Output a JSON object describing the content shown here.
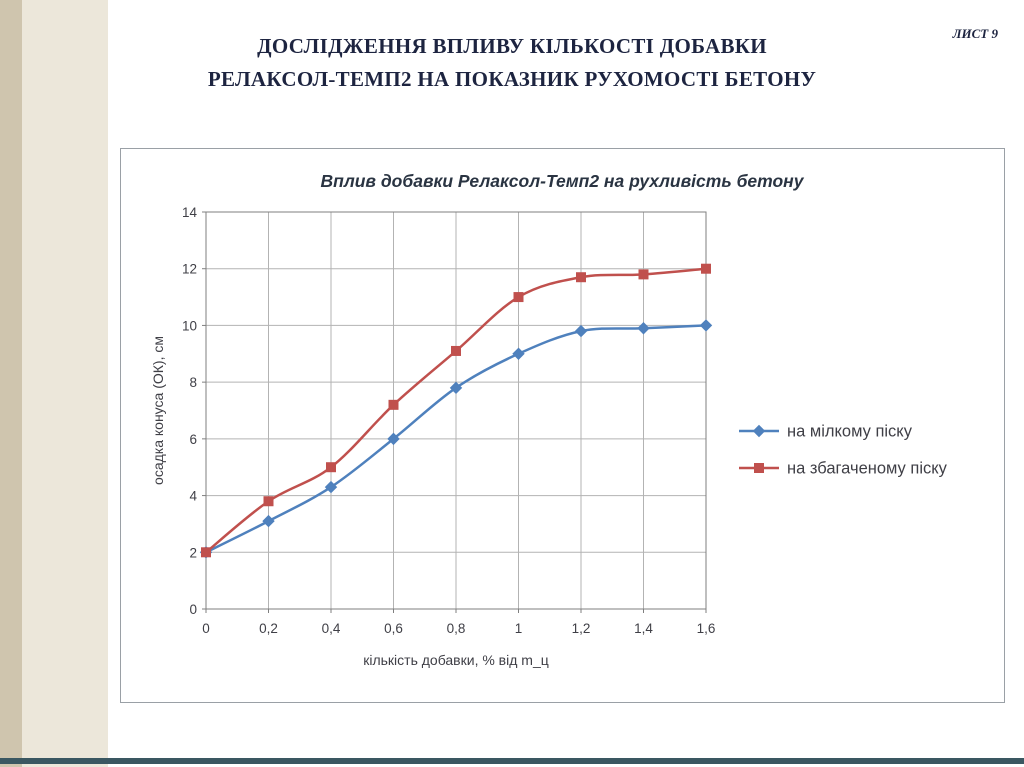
{
  "slide": {
    "page_label": "ЛИСТ 9",
    "title_line1": "ДОСЛІДЖЕННЯ ВПЛИВУ КІЛЬКОСТІ ДОБАВКИ",
    "title_line2": "РЕЛАКСОЛ-ТЕМП2 НА ПОКАЗНИК РУХОМОСТІ БЕТОНУ"
  },
  "colors": {
    "left_strip_dark": "#cfc5ae",
    "left_strip_light": "#ece7da",
    "bottom_bar": "#3a5761",
    "title_text": "#1d2440",
    "grid_line": "#b3b3b3",
    "plot_border": "#7f7f7f",
    "series_fine_sand": "#4f81bd",
    "series_enriched_sand": "#c0504d"
  },
  "chart_data": {
    "type": "line",
    "title": "Вплив добавки Релаксол-Темп2 на рухливість бетону",
    "xlabel": "кількість добавки, % від m_ц",
    "ylabel": "осадка конуса (ОК), см",
    "x": [
      0,
      0.2,
      0.4,
      0.6,
      0.8,
      1,
      1.2,
      1.4,
      1.6
    ],
    "x_tick_labels": [
      "0",
      "0,2",
      "0,4",
      "0,6",
      "0,8",
      "1",
      "1,2",
      "1,4",
      "1,6"
    ],
    "ylim": [
      0,
      14
    ],
    "y_ticks": [
      0,
      2,
      4,
      6,
      8,
      10,
      12,
      14
    ],
    "grid": true,
    "legend_position": "right",
    "series": [
      {
        "name": "на мілкому піску",
        "color": "#4f81bd",
        "marker": "diamond",
        "values": [
          2,
          3.1,
          4.3,
          6,
          7.8,
          9,
          9.8,
          9.9,
          10
        ]
      },
      {
        "name": "на збагаченому піску",
        "color": "#c0504d",
        "marker": "square",
        "values": [
          2,
          3.8,
          5,
          7.2,
          9.1,
          11,
          11.7,
          11.8,
          12
        ]
      }
    ]
  }
}
